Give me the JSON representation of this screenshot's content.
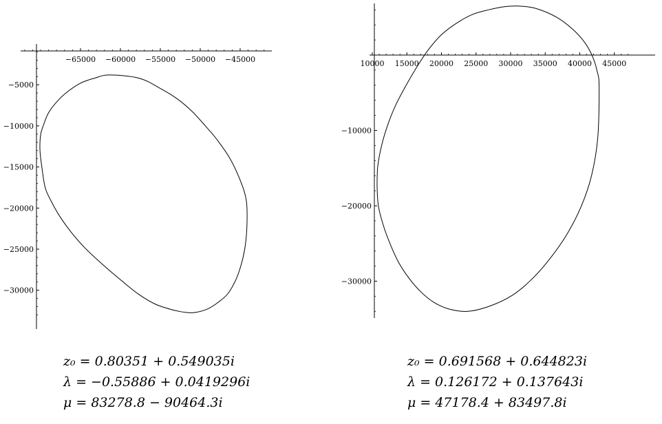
{
  "chart_data": [
    {
      "type": "line",
      "title": "",
      "xlabel": "",
      "ylabel": "",
      "x_ticks": [
        -65000,
        -60000,
        -55000,
        -50000,
        -45000
      ],
      "y_ticks": [
        -5000,
        -10000,
        -15000,
        -20000,
        -25000,
        -30000
      ],
      "x_tick_labels": [
        "−65000",
        "−60000",
        "−55000",
        "−50000",
        "−45000"
      ],
      "y_tick_labels": [
        "−5000",
        "−10000",
        "−15000",
        "−20000",
        "−25000",
        "−30000"
      ],
      "xlim": [
        -72000,
        -41000
      ],
      "ylim": [
        -33500,
        1000
      ],
      "series": [
        {
          "x": [
            -61400,
            -57660,
            -54900,
            -52760,
            -50960,
            -49360,
            -47960,
            -46320,
            -45000,
            -44240,
            -44140,
            -44350,
            -44820,
            -45530,
            -46530,
            -47800,
            -49150,
            -50600,
            -51800,
            -53400,
            -55600,
            -57700,
            -59900,
            -62300,
            -64400,
            -66200,
            -67600,
            -68600,
            -69400,
            -69800,
            -70080,
            -70000,
            -69600,
            -69000,
            -68000,
            -66700,
            -65000,
            -63250,
            -61400
          ],
          "y": [
            -3800,
            -4200,
            -5500,
            -6800,
            -8300,
            -10000,
            -11600,
            -13900,
            -16600,
            -19000,
            -21700,
            -24500,
            -26700,
            -28700,
            -30400,
            -31500,
            -32300,
            -32700,
            -32700,
            -32400,
            -31700,
            -30500,
            -28800,
            -26800,
            -24900,
            -22900,
            -21000,
            -19300,
            -17600,
            -15300,
            -13000,
            -11100,
            -9800,
            -8400,
            -7100,
            -5900,
            -4800,
            -4200,
            -3800
          ]
        }
      ],
      "annotations": [
        "z₀ = 0.80351 + 0.549035i",
        "λ = −0.55886 + 0.0419296i",
        "μ = 83278.8 − 90464.3i"
      ]
    },
    {
      "type": "line",
      "title": "",
      "xlabel": "",
      "ylabel": "",
      "x_ticks": [
        10000,
        15000,
        20000,
        25000,
        30000,
        35000,
        40000,
        45000
      ],
      "y_ticks": [
        -10000,
        -20000,
        -30000
      ],
      "x_tick_labels": [
        "10000",
        "15000",
        "20000",
        "25000",
        "30000",
        "35000",
        "40000",
        "45000"
      ],
      "y_tick_labels": [
        "−10000",
        "−20000",
        "−30000"
      ],
      "xlim": [
        9000,
        47500
      ],
      "ylim": [
        -35000,
        7000
      ],
      "series": [
        {
          "x": [
            31000,
            33600,
            36700,
            39000,
            40700,
            41800,
            42500,
            42800,
            42600,
            41700,
            40200,
            38200,
            35700,
            33000,
            30200,
            27000,
            23800,
            21100,
            18900,
            17000,
            15300,
            13800,
            12600,
            11600,
            10900,
            10700,
            10800,
            11400,
            12300,
            13400,
            14900,
            16500,
            18100,
            20000,
            22300,
            24500,
            26800,
            29000,
            31000
          ],
          "y": [
            6500,
            6200,
            5000,
            3400,
            1700,
            -100,
            -2100,
            -4200,
            -11000,
            -16000,
            -20100,
            -23700,
            -27000,
            -29800,
            -31900,
            -33300,
            -34000,
            -33700,
            -32800,
            -31400,
            -29600,
            -27500,
            -25100,
            -22600,
            -20100,
            -17500,
            -14700,
            -11800,
            -9100,
            -6600,
            -4000,
            -1500,
            700,
            2700,
            4300,
            5400,
            6000,
            6400,
            6500
          ]
        }
      ],
      "annotations": [
        "z₀ = 0.691568 + 0.644823i",
        "λ = 0.126172 + 0.137643i",
        "μ = 47178.4 + 83497.8i"
      ]
    }
  ]
}
